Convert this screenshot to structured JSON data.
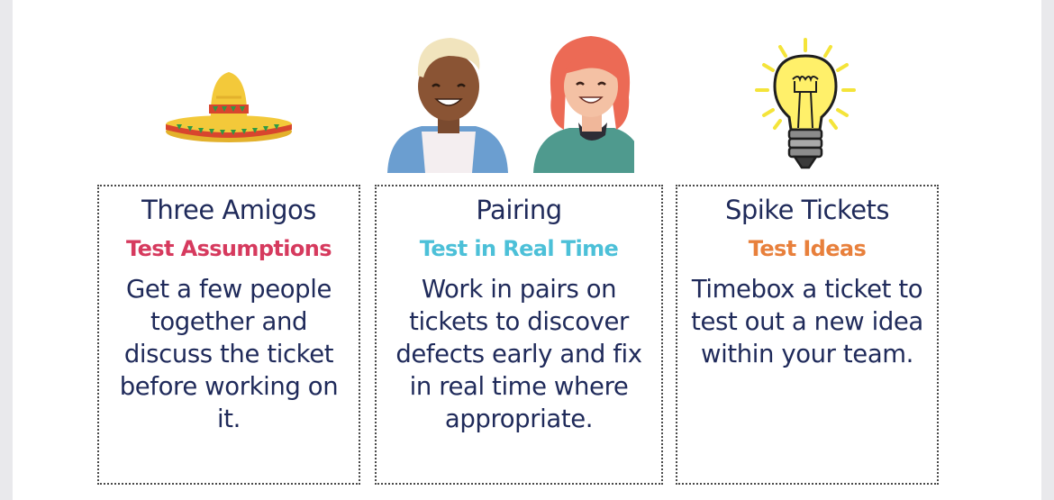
{
  "colors": {
    "text": "#1f2a5a",
    "three_amigos_accent": "#d63a5e",
    "pairing_accent": "#4cc0d8",
    "spike_accent": "#e8803c"
  },
  "cards": [
    {
      "title": "Three Amigos",
      "subtitle": "Test Assumptions",
      "body": [
        "Get a few people",
        "together and",
        "discuss the ticket",
        "before working on",
        "it."
      ],
      "icon": "sombrero-icon"
    },
    {
      "title": "Pairing",
      "subtitle": "Test in Real Time",
      "body": [
        "Work in pairs on",
        "tickets to discover",
        "defects early and fix",
        "in real time where",
        "appropriate."
      ],
      "icon": "pair-people-icon"
    },
    {
      "title": "Spike Tickets",
      "subtitle": "Test Ideas",
      "body": [
        "Timebox a ticket to",
        "test out a new idea",
        "within your team."
      ],
      "icon": "lightbulb-icon"
    }
  ]
}
